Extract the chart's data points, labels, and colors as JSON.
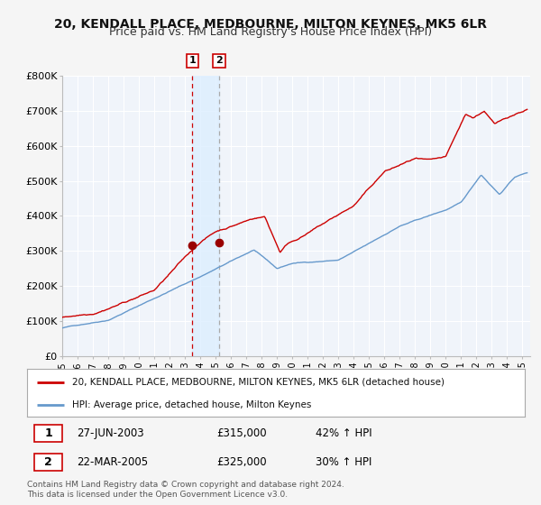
{
  "title": "20, KENDALL PLACE, MEDBOURNE, MILTON KEYNES, MK5 6LR",
  "subtitle": "Price paid vs. HM Land Registry's House Price Index (HPI)",
  "legend_line1": "20, KENDALL PLACE, MEDBOURNE, MILTON KEYNES, MK5 6LR (detached house)",
  "legend_line2": "HPI: Average price, detached house, Milton Keynes",
  "table_row1": [
    "1",
    "27-JUN-2003",
    "£315,000",
    "42% ↑ HPI"
  ],
  "table_row2": [
    "2",
    "22-MAR-2005",
    "£325,000",
    "30% ↑ HPI"
  ],
  "footer": "Contains HM Land Registry data © Crown copyright and database right 2024.\nThis data is licensed under the Open Government Licence v3.0.",
  "hpi_color": "#6699cc",
  "price_color": "#cc0000",
  "marker_color": "#990000",
  "vline1_color": "#cc0000",
  "vline2_color": "#aaaaaa",
  "vshade_color": "#ddeeff",
  "marker1_x": 2003.49,
  "marker1_y": 315000,
  "marker2_x": 2005.22,
  "marker2_y": 325000,
  "vline1_x": 2003.49,
  "vline2_x": 2005.22,
  "ylim": [
    0,
    800000
  ],
  "xlim": [
    1995,
    2025.5
  ],
  "yticks": [
    0,
    100000,
    200000,
    300000,
    400000,
    500000,
    600000,
    700000,
    800000
  ],
  "ytick_labels": [
    "£0",
    "£100K",
    "£200K",
    "£300K",
    "£400K",
    "£500K",
    "£600K",
    "£700K",
    "£800K"
  ],
  "fig_bg_color": "#f5f5f5",
  "plot_bg_color": "#f0f4fa",
  "grid_color": "#ffffff",
  "title_fontsize": 10,
  "subtitle_fontsize": 9
}
